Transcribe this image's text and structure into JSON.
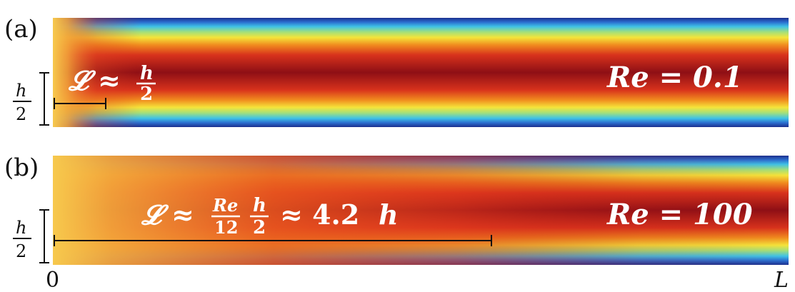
{
  "panels": [
    {
      "label": "(a)",
      "re_text": "Re = 0.1",
      "entrance_length": "𝓛 ≈ h/2",
      "half_height": "h/2"
    },
    {
      "label": "(b)",
      "re_text": "Re = 100",
      "entrance_length": "𝓛 ≈ (Re/12)(h/2) ≈ 4.2 h",
      "half_height": "h/2"
    }
  ],
  "axis": {
    "start": "0",
    "end": "L"
  },
  "colors": {
    "core_red": "#8e0f15",
    "red": "#d6261c",
    "orange": "#f0a020",
    "yellow": "#f5e43a",
    "cyan": "#3fc2e6",
    "blue": "#1b3f9a",
    "inlet_yellow": "#f7c94d"
  }
}
